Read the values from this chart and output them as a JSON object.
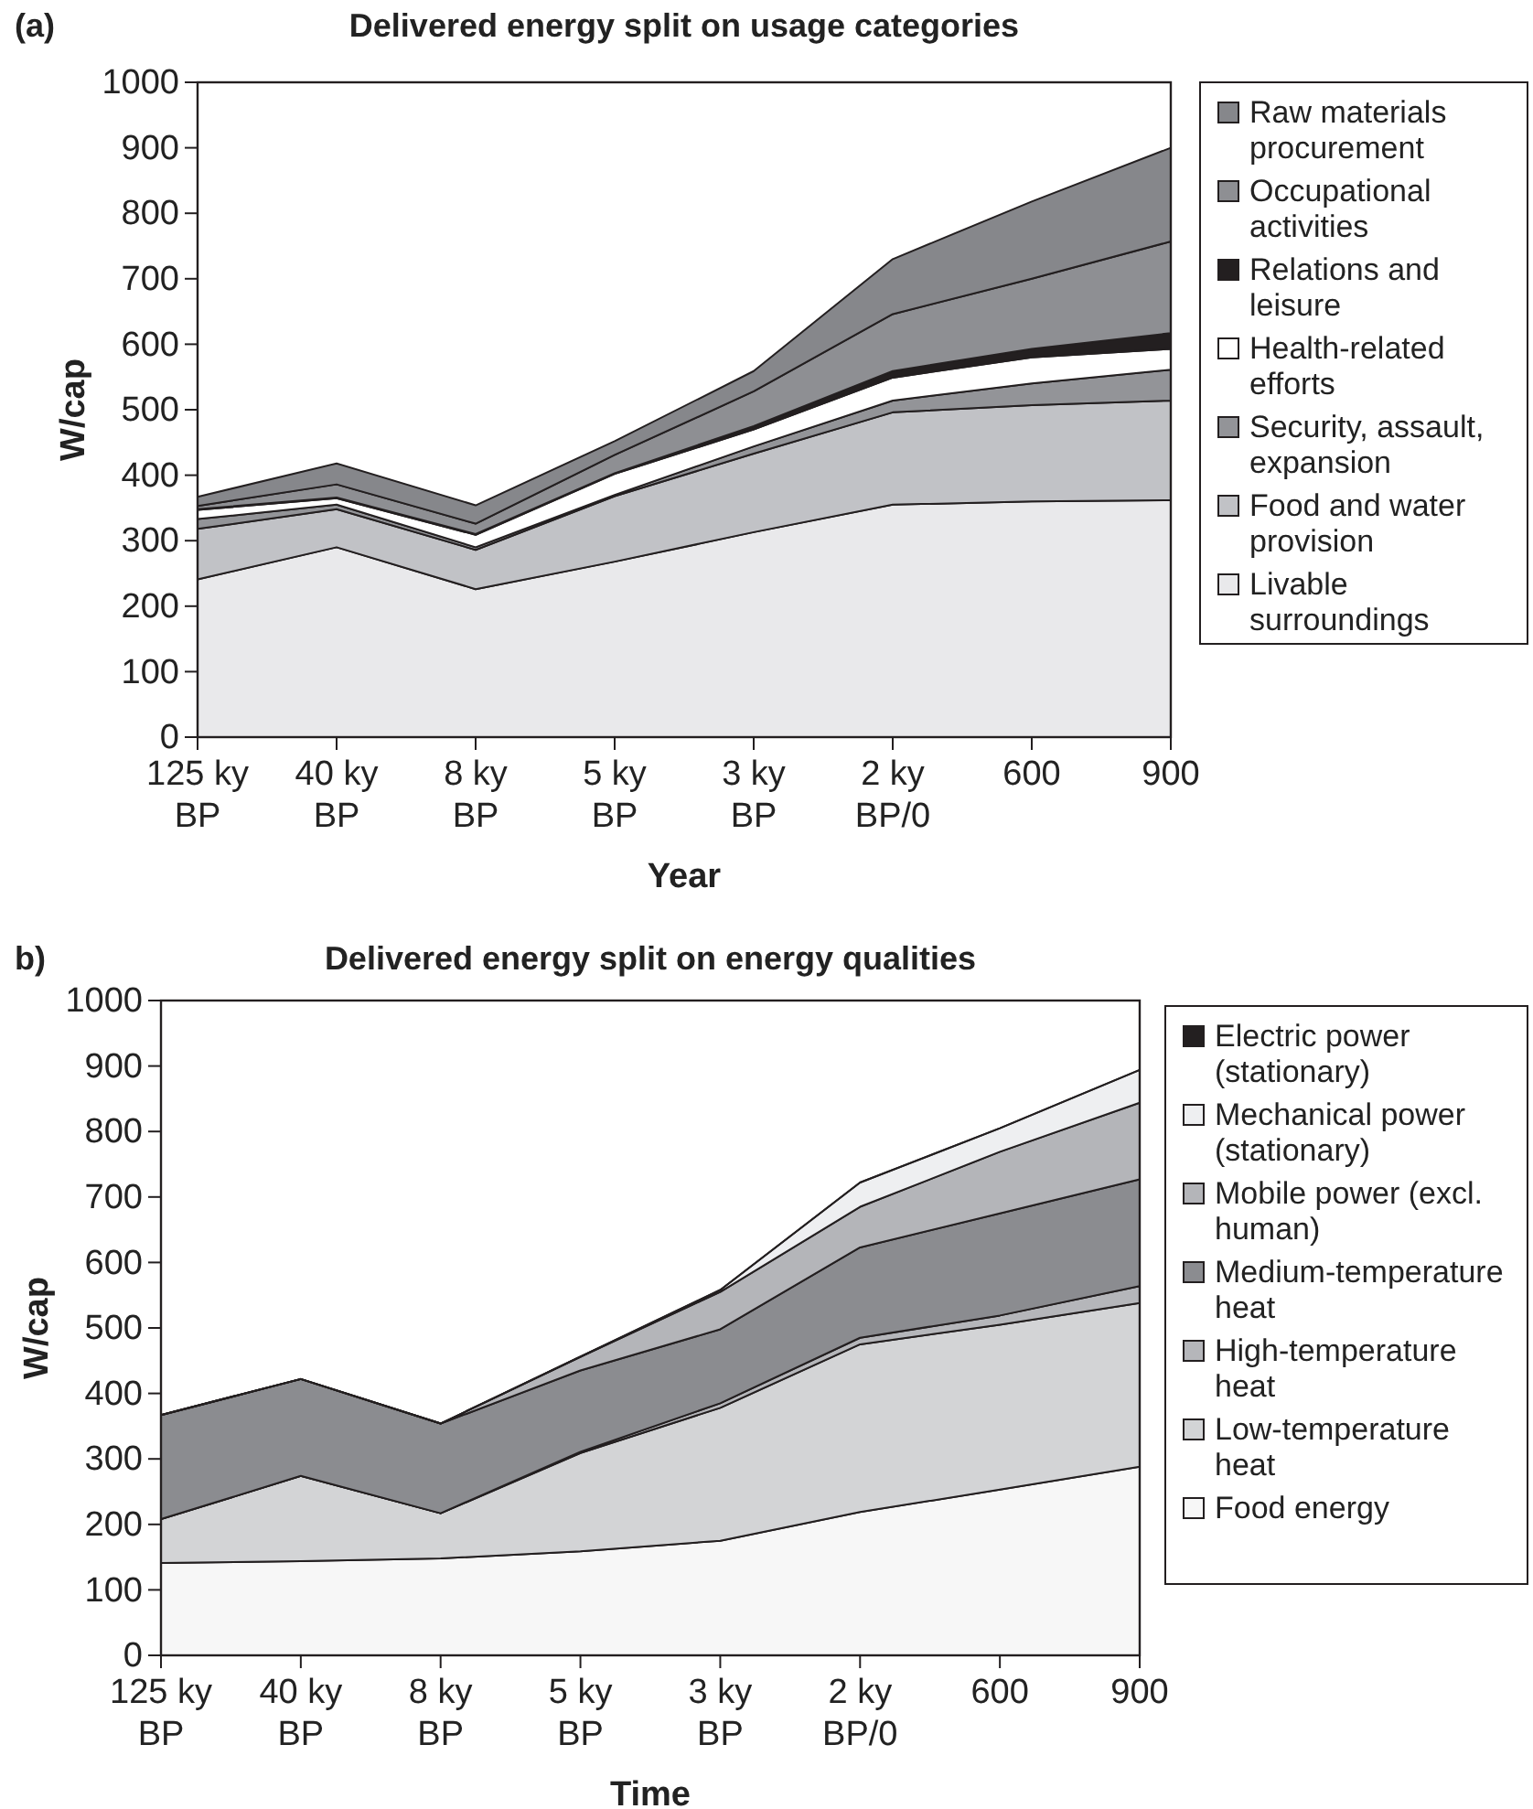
{
  "chart_data": [
    {
      "type": "area",
      "stacked": true,
      "title": "Delivered energy split on usage categories",
      "xlabel": "Year",
      "ylabel": "W/cap",
      "annotations": [
        "(a)"
      ],
      "categories": [
        "125 ky\nBP",
        "40 ky\nBP",
        "8 ky\nBP",
        "5 ky\nBP",
        "3 ky\nBP",
        "2 ky\nBP/0",
        "600",
        "900"
      ],
      "ylim": [
        0,
        1000
      ],
      "yticks": [
        0,
        100,
        200,
        300,
        400,
        500,
        600,
        700,
        800,
        900,
        1000
      ],
      "legend": "right",
      "grid": false,
      "series": [
        {
          "name": "Livable surroundings",
          "color": "#e9e9eb",
          "values": [
            241,
            290,
            226,
            268,
            313,
            355,
            360,
            362
          ]
        },
        {
          "name": "Food and water provision",
          "color": "#c1c2c6",
          "values": [
            77,
            58,
            60,
            100,
            120,
            141,
            147,
            152
          ]
        },
        {
          "name": "Security, assault, expansion",
          "color": "#939498",
          "values": [
            15,
            7,
            4,
            2,
            11,
            18,
            33,
            47
          ]
        },
        {
          "name": "Health-related efforts",
          "color": "#ffffff",
          "values": [
            14,
            10,
            19,
            32,
            26,
            35,
            40,
            32
          ]
        },
        {
          "name": "Relations and leisure",
          "color": "#231f20",
          "values": [
            1,
            1,
            1,
            1,
            5,
            10,
            13,
            24
          ]
        },
        {
          "name": "Occupational activities",
          "color": "#8e8f93",
          "values": [
            5,
            20,
            16,
            28,
            53,
            87,
            107,
            140
          ]
        },
        {
          "name": "Raw materials procurement",
          "color": "#86878b",
          "values": [
            14,
            32,
            28,
            21,
            31,
            84,
            118,
            143
          ]
        }
      ]
    },
    {
      "type": "area",
      "stacked": true,
      "title": "Delivered energy split on energy qualities",
      "xlabel": "Time",
      "ylabel": "W/cap",
      "annotations": [
        "b)"
      ],
      "categories": [
        "125 ky\nBP",
        "40 ky\nBP",
        "8 ky\nBP",
        "5 ky\nBP",
        "3 ky\nBP",
        "2 ky\nBP/0",
        "600",
        "900"
      ],
      "ylim": [
        0,
        1000
      ],
      "yticks": [
        0,
        100,
        200,
        300,
        400,
        500,
        600,
        700,
        800,
        900,
        1000
      ],
      "legend": "right",
      "grid": false,
      "series": [
        {
          "name": "Food energy",
          "color": "#f7f7f7",
          "values": [
            141,
            144,
            148,
            159,
            175,
            219,
            253,
            288
          ]
        },
        {
          "name": "Low-temperature heat",
          "color": "#d3d4d6",
          "values": [
            67,
            130,
            69,
            150,
            203,
            256,
            252,
            250
          ]
        },
        {
          "name": "High-temperature heat",
          "color": "#b5b6ba",
          "values": [
            0,
            0,
            0,
            2,
            7,
            10,
            14,
            26
          ]
        },
        {
          "name": "Medium-temperature heat",
          "color": "#8b8c90",
          "values": [
            159,
            148,
            137,
            124,
            113,
            138,
            156,
            163
          ]
        },
        {
          "name": "Mobile power (excl. human)",
          "color": "#b4b5b9",
          "values": [
            0,
            0,
            0,
            21,
            57,
            62,
            94,
            117
          ]
        },
        {
          "name": "Mechanical power (stationary)",
          "color": "#eeeff1",
          "values": [
            0,
            0,
            0,
            0,
            3,
            37,
            36,
            50
          ]
        },
        {
          "name": "Electric power (stationary)",
          "color": "#231f20",
          "values": [
            null,
            null,
            null,
            null,
            null,
            null,
            null,
            null
          ]
        }
      ]
    }
  ]
}
